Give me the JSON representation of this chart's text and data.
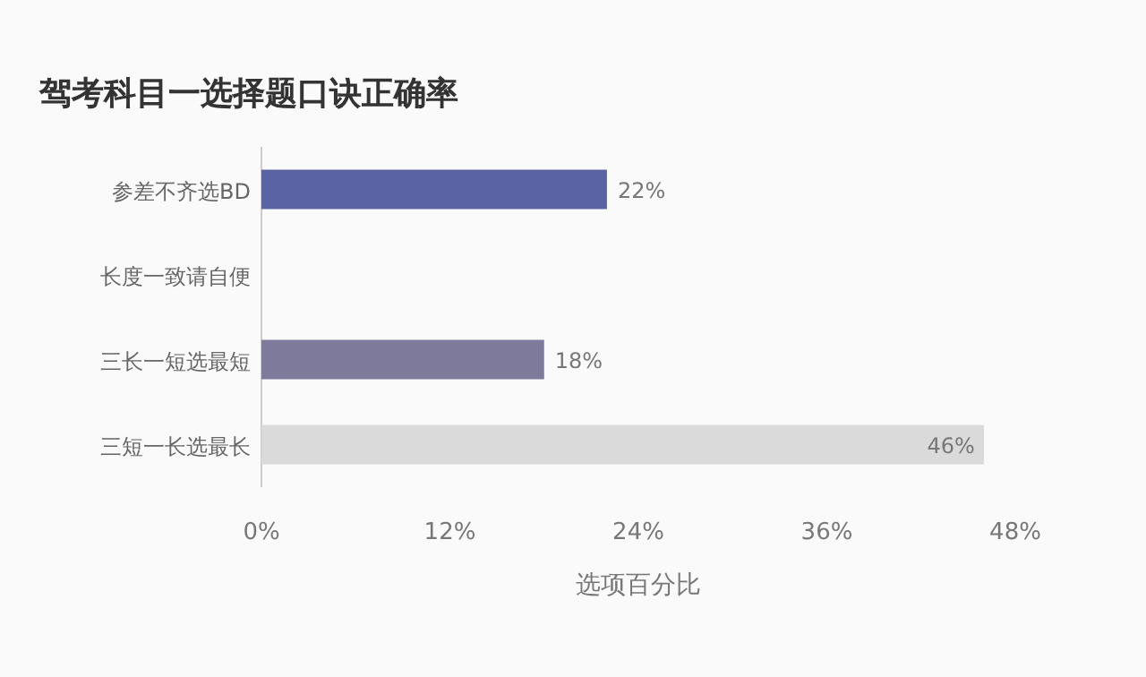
{
  "chart_data": {
    "type": "bar",
    "orientation": "horizontal",
    "title": "驾考科目一选择题口诀正确率",
    "xlabel": "选项百分比",
    "categories": [
      "参差不齐选BD",
      "长度一致请自便",
      "三长一短选最短",
      "三短一长选最长"
    ],
    "values": [
      22,
      null,
      18,
      46
    ],
    "value_labels": [
      "22%",
      null,
      "18%",
      "46%"
    ],
    "colors": [
      "#5a64a4",
      null,
      "#7d7a9c",
      "#dadada"
    ],
    "xlim": [
      0,
      48
    ],
    "xticks": [
      {
        "value": 0,
        "label": "0%"
      },
      {
        "value": 12,
        "label": "12%"
      },
      {
        "value": 24,
        "label": "24%"
      },
      {
        "value": 36,
        "label": "36%"
      },
      {
        "value": 48,
        "label": "48%"
      }
    ]
  }
}
